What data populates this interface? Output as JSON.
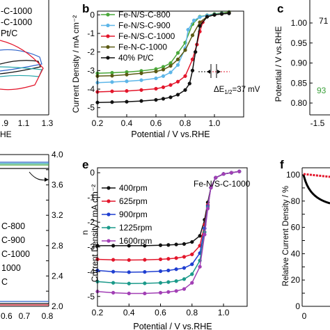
{
  "figure": {
    "panel_letters": [
      "b",
      "c",
      "e",
      "f"
    ]
  },
  "colors": {
    "FeNSC800": "#4aa83a",
    "FeNSC900": "#5db6e8",
    "FeNSC1000": "#e3162b",
    "FeNC1000": "#5b5a13",
    "PtC": "#111111",
    "r400": "#111111",
    "r625": "#e3162b",
    "r900": "#1f3fd1",
    "r1225": "#1b9a8a",
    "r1600": "#a23fb5",
    "green_text": "#3aa03a",
    "black_curve": "#000000"
  },
  "left_top_fragment": {
    "legend": [
      "-C-1000",
      "-C-1000",
      "Pt/C"
    ],
    "x_ticks": [
      ".9",
      "1.1",
      "1.3"
    ],
    "x_label_tail": "HE"
  },
  "left_bottom_fragment": {
    "legend": [
      "C-800",
      "C-900",
      "C-1000",
      "1000",
      "C"
    ],
    "y2_ticks": [
      "4.0",
      "3.8",
      "3.6",
      "3.4",
      "3.2",
      "3.0",
      "2.8",
      "2.6",
      "2.4",
      "2.2",
      "2.0"
    ],
    "y2_label": "n",
    "x_ticks": [
      "0.6",
      "0.7",
      "0.8"
    ]
  },
  "panel_c_fragment": {
    "y_label": "Potential / V vs.RHE",
    "y_ticks": [
      "1.00",
      "0.95",
      "0.90",
      "0.85",
      "0.80"
    ],
    "x_ticks": [
      "-1.5"
    ],
    "label_black": "71",
    "label_green": "93"
  },
  "panel_f_fragment": {
    "y_label": "Relative Current Density / %",
    "y_ticks": [
      "100",
      "90",
      "80",
      "70",
      "60",
      "50",
      "40",
      "30",
      "20",
      "10",
      "0"
    ],
    "x_ticks": [
      "0"
    ]
  },
  "chart_data": [
    {
      "panel": "b",
      "type": "line",
      "xlabel": "Potential / V vs.RHE",
      "ylabel": "Current Density / mA cm⁻²",
      "xlim": [
        0.2,
        1.2
      ],
      "ylim": [
        -5.5,
        0.2
      ],
      "x_ticks": [
        "0.2",
        "0.4",
        "0.6",
        "0.8",
        "1.0"
      ],
      "y_ticks": [
        "0",
        "-1",
        "-2",
        "-3",
        "-4",
        "-5"
      ],
      "annotation": "ΔE",
      "annotation_sub": "1/2",
      "annotation_tail": "=37 mV",
      "legend_position": "top-left",
      "series": [
        {
          "name": "Fe-N/S-C-800",
          "color_key": "FeNSC800",
          "marker": "circle",
          "filled": true,
          "x": [
            0.2,
            0.3,
            0.4,
            0.5,
            0.6,
            0.65,
            0.7,
            0.75,
            0.8,
            0.85,
            0.9,
            0.95,
            1.0,
            1.05,
            1.1
          ],
          "y": [
            -3.15,
            -3.12,
            -3.08,
            -3.02,
            -2.92,
            -2.8,
            -2.6,
            -2.05,
            -1.5,
            -0.5,
            -0.1,
            -0.02,
            0.05,
            0.1,
            0.15
          ]
        },
        {
          "name": "Fe-N/S-C-900",
          "color_key": "FeNSC900",
          "marker": "circle",
          "filled": true,
          "x": [
            0.2,
            0.3,
            0.4,
            0.5,
            0.6,
            0.65,
            0.7,
            0.75,
            0.8,
            0.82,
            0.86,
            0.9,
            0.95,
            1.0,
            1.05,
            1.1
          ],
          "y": [
            -3.65,
            -3.62,
            -3.58,
            -3.52,
            -3.42,
            -3.3,
            -3.1,
            -2.7,
            -1.8,
            -0.8,
            -0.3,
            -0.12,
            -0.03,
            0.02,
            0.07,
            0.1
          ]
        },
        {
          "name": "Fe-N/S-C-1000",
          "color_key": "FeNSC1000",
          "marker": "circle",
          "filled": true,
          "x": [
            0.2,
            0.3,
            0.4,
            0.5,
            0.6,
            0.65,
            0.7,
            0.75,
            0.8,
            0.85,
            0.88,
            0.9,
            0.92,
            0.95,
            1.0,
            1.05,
            1.1
          ],
          "y": [
            -4.15,
            -4.12,
            -4.1,
            -4.05,
            -3.98,
            -3.9,
            -3.78,
            -3.6,
            -3.3,
            -2.4,
            -1.6,
            -0.9,
            -0.4,
            -0.1,
            0.0,
            0.05,
            0.1
          ]
        },
        {
          "name": "Fe-N-C-1000",
          "color_key": "FeNC1000",
          "marker": "circle",
          "filled": true,
          "x": [
            0.2,
            0.3,
            0.4,
            0.5,
            0.6,
            0.65,
            0.7,
            0.75,
            0.8,
            0.85,
            0.9,
            0.95,
            1.0,
            1.05,
            1.1
          ],
          "y": [
            -3.3,
            -3.28,
            -3.22,
            -3.15,
            -3.05,
            -2.95,
            -2.75,
            -2.4,
            -1.9,
            -1.1,
            -0.4,
            -0.1,
            0.0,
            0.05,
            0.1
          ]
        },
        {
          "name": "40% Pt/C",
          "color_key": "PtC",
          "marker": "circle",
          "filled": true,
          "x": [
            0.2,
            0.3,
            0.4,
            0.5,
            0.6,
            0.65,
            0.7,
            0.75,
            0.8,
            0.83,
            0.85,
            0.87,
            0.9,
            0.95,
            1.0,
            1.05,
            1.1
          ],
          "y": [
            -4.72,
            -4.7,
            -4.68,
            -4.64,
            -4.58,
            -4.52,
            -4.44,
            -4.3,
            -4.05,
            -3.7,
            -3.0,
            -2.0,
            -0.6,
            -0.1,
            0.0,
            0.05,
            0.08
          ]
        }
      ]
    },
    {
      "panel": "e",
      "type": "line",
      "title": "Fe-N/S-C-1000",
      "xlabel": "Potential / V vs.RHE",
      "ylabel": "Current Density / mA cm⁻²",
      "xlim": [
        0.2,
        1.15
      ],
      "ylim": [
        -5.4,
        0.2
      ],
      "x_ticks": [
        "0.2",
        "0.4",
        "0.6",
        "0.8",
        "1.0"
      ],
      "y_ticks": [
        "0",
        "-1",
        "-2",
        "-3",
        "-4",
        "-5"
      ],
      "legend_position": "top-left",
      "series": [
        {
          "name": "400rpm",
          "color_key": "r400",
          "marker": "circle",
          "filled": true,
          "x": [
            0.2,
            0.3,
            0.4,
            0.5,
            0.6,
            0.65,
            0.7,
            0.75,
            0.8,
            0.85,
            0.88,
            0.9,
            0.92,
            0.95,
            1.0,
            1.05,
            1.1
          ],
          "y": [
            -2.95,
            -2.95,
            -2.95,
            -2.95,
            -2.93,
            -2.92,
            -2.9,
            -2.88,
            -2.8,
            -2.55,
            -1.9,
            -1.2,
            -0.6,
            -0.2,
            -0.05,
            0.0,
            0.05
          ]
        },
        {
          "name": "625rpm",
          "color_key": "r625",
          "marker": "circle",
          "filled": true,
          "x": [
            0.2,
            0.3,
            0.4,
            0.5,
            0.6,
            0.65,
            0.7,
            0.75,
            0.8,
            0.85,
            0.88,
            0.9,
            0.92,
            0.95,
            1.0,
            1.05,
            1.1
          ],
          "y": [
            -3.5,
            -3.52,
            -3.53,
            -3.52,
            -3.5,
            -3.48,
            -3.45,
            -3.4,
            -3.3,
            -2.95,
            -2.1,
            -1.3,
            -0.6,
            -0.2,
            -0.05,
            0.0,
            0.05
          ]
        },
        {
          "name": "900rpm",
          "color_key": "r900",
          "marker": "circle",
          "filled": true,
          "x": [
            0.2,
            0.3,
            0.4,
            0.5,
            0.6,
            0.65,
            0.7,
            0.75,
            0.8,
            0.85,
            0.88,
            0.9,
            0.92,
            0.95,
            1.0,
            1.05,
            1.1
          ],
          "y": [
            -3.95,
            -4.0,
            -4.02,
            -4.01,
            -3.98,
            -3.95,
            -3.9,
            -3.85,
            -3.7,
            -3.25,
            -2.25,
            -1.35,
            -0.6,
            -0.2,
            -0.05,
            0.0,
            0.05
          ]
        },
        {
          "name": "1225rpm",
          "color_key": "r1225",
          "marker": "circle",
          "filled": true,
          "x": [
            0.2,
            0.3,
            0.4,
            0.5,
            0.6,
            0.65,
            0.7,
            0.75,
            0.8,
            0.85,
            0.88,
            0.9,
            0.92,
            0.95,
            1.0,
            1.05,
            1.1
          ],
          "y": [
            -4.4,
            -4.45,
            -4.48,
            -4.47,
            -4.45,
            -4.42,
            -4.38,
            -4.3,
            -4.1,
            -3.55,
            -2.4,
            -1.4,
            -0.6,
            -0.2,
            -0.05,
            0.0,
            0.05
          ]
        },
        {
          "name": "1600rpm",
          "color_key": "r1600",
          "marker": "circle",
          "filled": true,
          "x": [
            0.2,
            0.3,
            0.4,
            0.5,
            0.6,
            0.65,
            0.7,
            0.75,
            0.8,
            0.85,
            0.88,
            0.9,
            0.92,
            0.95,
            1.0,
            1.05,
            1.1
          ],
          "y": [
            -4.8,
            -4.85,
            -4.88,
            -4.88,
            -4.85,
            -4.82,
            -4.78,
            -4.7,
            -4.45,
            -3.8,
            -2.5,
            -1.45,
            -0.6,
            -0.2,
            -0.05,
            0.0,
            0.05
          ]
        }
      ]
    }
  ]
}
